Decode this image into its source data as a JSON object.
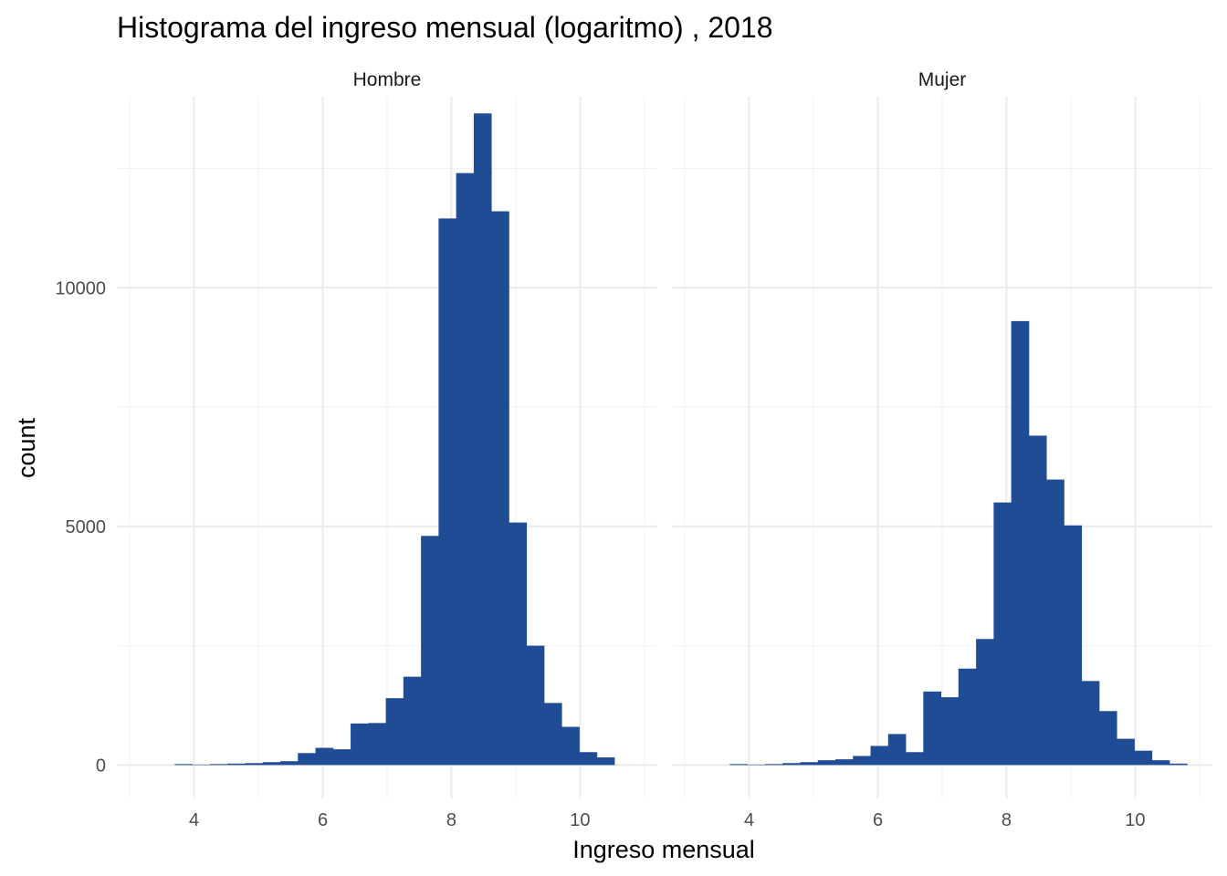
{
  "chart_data": {
    "type": "bar",
    "title": "Histograma del ingreso mensual (logaritmo) , 2018",
    "xlabel": "Ingreso mensual",
    "ylabel": "count",
    "xlim": [
      2.8,
      11.2
    ],
    "ylim": [
      -700,
      14000
    ],
    "x_ticks": [
      4,
      6,
      8,
      10
    ],
    "y_ticks": [
      0,
      5000,
      10000
    ],
    "grid": true,
    "bar_color": "#204c96",
    "bin_edges": [
      3.7,
      3.973,
      4.247,
      4.52,
      4.793,
      5.067,
      5.34,
      5.613,
      5.887,
      6.16,
      6.433,
      6.707,
      6.98,
      7.253,
      7.527,
      7.8,
      8.073,
      8.347,
      8.62,
      8.893,
      9.167,
      9.44,
      9.713,
      9.987,
      10.26,
      10.533,
      10.807
    ],
    "facets": [
      {
        "name": "Hombre",
        "values": [
          20,
          10,
          20,
          30,
          40,
          60,
          80,
          250,
          360,
          330,
          870,
          880,
          1400,
          1850,
          4800,
          11450,
          12400,
          13650,
          11600,
          5080,
          2500,
          1300,
          800,
          270,
          160,
          0
        ]
      },
      {
        "name": "Mujer",
        "values": [
          20,
          10,
          20,
          40,
          60,
          100,
          120,
          190,
          400,
          650,
          270,
          1540,
          1420,
          2020,
          2640,
          5500,
          9300,
          6900,
          5980,
          5020,
          1760,
          1130,
          550,
          300,
          100,
          30
        ]
      }
    ]
  }
}
